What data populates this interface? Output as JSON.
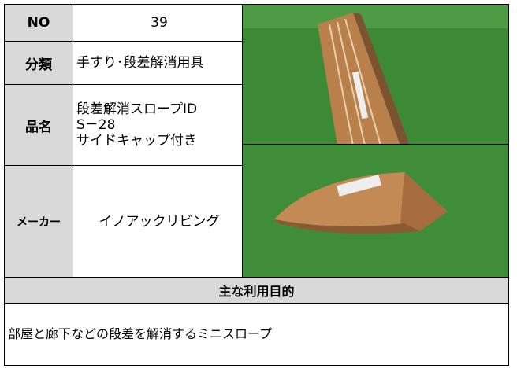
{
  "fields": [
    {
      "label": "NO",
      "value": "39"
    },
    {
      "label": "分類",
      "value": "手すり･段差解消用具"
    },
    {
      "label": "品名",
      "value": "段差解消スロープID\nS－28\nサイドキャップ付き"
    },
    {
      "label": "メーカー",
      "value": "イノアックリビング"
    }
  ],
  "purpose": {
    "title": "主な利用目的",
    "text": "部屋と廊下などの段差を解消するミニスロープ"
  }
}
